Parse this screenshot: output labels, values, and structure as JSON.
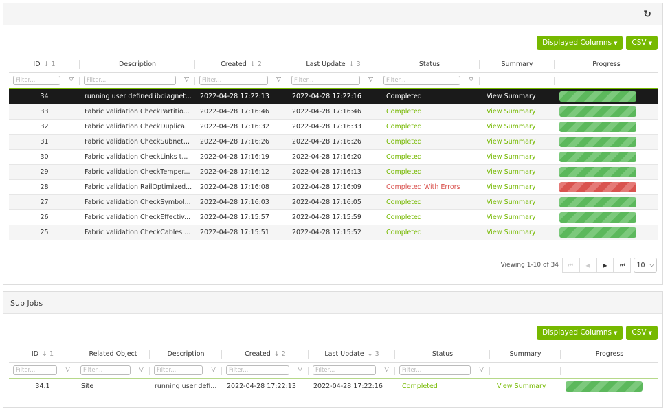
{
  "jobs": {
    "displayed_columns": "Displayed Columns",
    "csv": "CSV",
    "filter_placeholder": "Filter...",
    "columns": [
      {
        "label": "ID",
        "sort": "1"
      },
      {
        "label": "Description"
      },
      {
        "label": "Created",
        "sort": "2"
      },
      {
        "label": "Last Update",
        "sort": "3"
      },
      {
        "label": "Status"
      },
      {
        "label": "Summary"
      },
      {
        "label": "Progress"
      }
    ],
    "rows": [
      {
        "id": "34",
        "description": "running user defined ibdiagnet...",
        "created": "2022-04-28 17:22:13",
        "updated": "2022-04-28 17:22:16",
        "status": "Completed",
        "summary": "View Summary",
        "progress": 100,
        "selected": true
      },
      {
        "id": "33",
        "description": "Fabric validation CheckPartitio...",
        "created": "2022-04-28 17:16:46",
        "updated": "2022-04-28 17:16:46",
        "status": "Completed",
        "summary": "View Summary",
        "progress": 100
      },
      {
        "id": "32",
        "description": "Fabric validation CheckDuplica...",
        "created": "2022-04-28 17:16:32",
        "updated": "2022-04-28 17:16:33",
        "status": "Completed",
        "summary": "View Summary",
        "progress": 100
      },
      {
        "id": "31",
        "description": "Fabric validation CheckSubnet...",
        "created": "2022-04-28 17:16:26",
        "updated": "2022-04-28 17:16:26",
        "status": "Completed",
        "summary": "View Summary",
        "progress": 100
      },
      {
        "id": "30",
        "description": "Fabric validation CheckLinks t...",
        "created": "2022-04-28 17:16:19",
        "updated": "2022-04-28 17:16:20",
        "status": "Completed",
        "summary": "View Summary",
        "progress": 100
      },
      {
        "id": "29",
        "description": "Fabric validation CheckTemper...",
        "created": "2022-04-28 17:16:12",
        "updated": "2022-04-28 17:16:13",
        "status": "Completed",
        "summary": "View Summary",
        "progress": 100
      },
      {
        "id": "28",
        "description": "Fabric validation RailOptimized...",
        "created": "2022-04-28 17:16:08",
        "updated": "2022-04-28 17:16:09",
        "status": "Completed With Errors",
        "summary": "View Summary",
        "progress": 100,
        "error": true
      },
      {
        "id": "27",
        "description": "Fabric validation CheckSymbol...",
        "created": "2022-04-28 17:16:03",
        "updated": "2022-04-28 17:16:05",
        "status": "Completed",
        "summary": "View Summary",
        "progress": 100
      },
      {
        "id": "26",
        "description": "Fabric validation CheckEffectiv...",
        "created": "2022-04-28 17:15:57",
        "updated": "2022-04-28 17:15:59",
        "status": "Completed",
        "summary": "View Summary",
        "progress": 100
      },
      {
        "id": "25",
        "description": "Fabric validation CheckCables ...",
        "created": "2022-04-28 17:15:51",
        "updated": "2022-04-28 17:15:52",
        "status": "Completed",
        "summary": "View Summary",
        "progress": 100
      }
    ],
    "pagination": {
      "viewing": "Viewing 1-10 of 34",
      "page_size": "10"
    }
  },
  "sub_jobs": {
    "title": "Sub Jobs",
    "displayed_columns": "Displayed Columns",
    "csv": "CSV",
    "filter_placeholder": "Filter...",
    "columns": [
      {
        "label": "ID",
        "sort": "1"
      },
      {
        "label": "Related Object"
      },
      {
        "label": "Description"
      },
      {
        "label": "Created",
        "sort": "2"
      },
      {
        "label": "Last Update",
        "sort": "3"
      },
      {
        "label": "Status"
      },
      {
        "label": "Summary"
      },
      {
        "label": "Progress"
      }
    ],
    "rows": [
      {
        "id": "34.1",
        "related": "Site",
        "description": "running user defi...",
        "created": "2022-04-28 17:22:13",
        "updated": "2022-04-28 17:22:16",
        "status": "Completed",
        "summary": "View Summary",
        "progress": 100
      }
    ]
  },
  "colors": {
    "accent": "#76b900",
    "error": "#d9534f",
    "selected_row": "#1a1a1a"
  }
}
